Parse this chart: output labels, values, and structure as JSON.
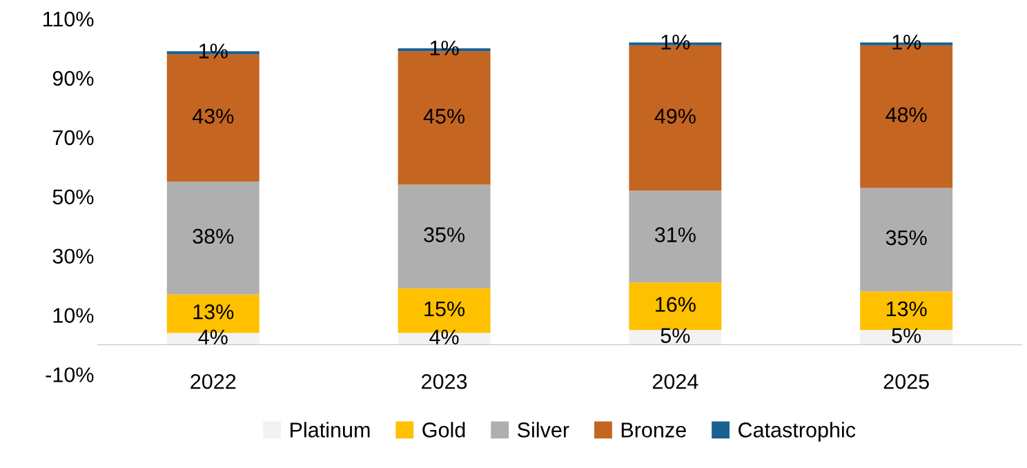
{
  "chart_data": {
    "type": "bar",
    "stacked": true,
    "categories": [
      "2022",
      "2023",
      "2024",
      "2025"
    ],
    "series": [
      {
        "name": "Platinum",
        "color": "#f2f2f2",
        "values": [
          4,
          4,
          5,
          5
        ],
        "value_labels": [
          "4%",
          "4%",
          "5%",
          "5%"
        ]
      },
      {
        "name": "Gold",
        "color": "#ffc000",
        "values": [
          13,
          15,
          16,
          13
        ],
        "value_labels": [
          "13%",
          "15%",
          "16%",
          "13%"
        ]
      },
      {
        "name": "Silver",
        "color": "#afafaf",
        "values": [
          38,
          35,
          31,
          35
        ],
        "value_labels": [
          "38%",
          "35%",
          "31%",
          "35%"
        ]
      },
      {
        "name": "Bronze",
        "color": "#c56522",
        "values": [
          43,
          45,
          49,
          48
        ],
        "value_labels": [
          "43%",
          "45%",
          "49%",
          "48%"
        ]
      },
      {
        "name": "Catastrophic",
        "color": "#1a6190",
        "values": [
          1,
          1,
          1,
          1
        ],
        "value_labels": [
          "1%",
          "1%",
          "1%",
          "1%"
        ]
      }
    ],
    "ylim": [
      -10,
      110
    ],
    "yticks": [
      {
        "value": -10,
        "label": "-10%"
      },
      {
        "value": 10,
        "label": "10%"
      },
      {
        "value": 30,
        "label": "30%"
      },
      {
        "value": 50,
        "label": "50%"
      },
      {
        "value": 70,
        "label": "70%"
      },
      {
        "value": 90,
        "label": "90%"
      },
      {
        "value": 110,
        "label": "110%"
      }
    ],
    "grid": false,
    "legend": "bottom"
  }
}
